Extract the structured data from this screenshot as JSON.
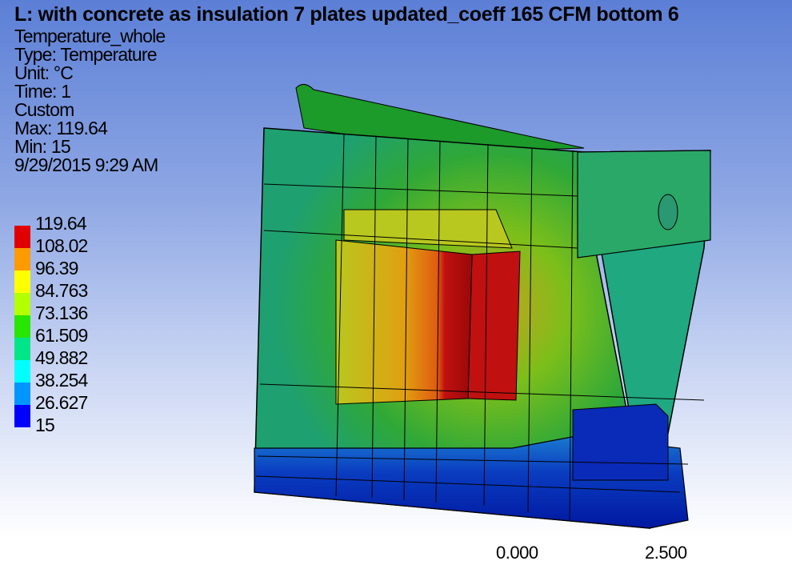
{
  "header": {
    "title": "L: with concrete as insulation 7 plates updated_coeff 165 CFM bottom 6"
  },
  "info": [
    "Temperature_whole",
    "Type: Temperature",
    "Unit: °C",
    "Time: 1",
    "Custom",
    "Max: 119.64",
    "Min: 15",
    "9/29/2015 9:29 AM"
  ],
  "legend": {
    "labels": [
      "119.64",
      "108.02",
      "96.39",
      "84.763",
      "73.136",
      "61.509",
      "49.882",
      "38.254",
      "26.627",
      "15"
    ]
  },
  "scale": {
    "labels": [
      "0.000",
      "2.500"
    ]
  }
}
